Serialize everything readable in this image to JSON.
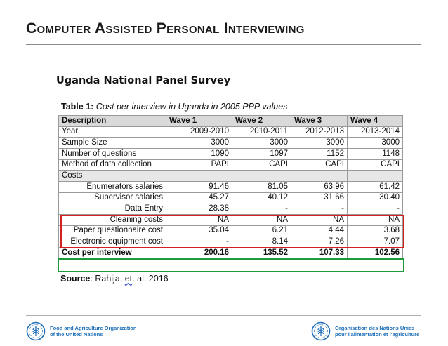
{
  "slide": {
    "title": "Computer Assisted Personal Interviewing",
    "subtitle": "Uganda National Panel Survey"
  },
  "table": {
    "caption_label": "Table 1:",
    "caption_text": "Cost per interview in Uganda in 2005 PPP values",
    "headers": [
      "Description",
      "Wave 1",
      "Wave 2",
      "Wave 3",
      "Wave 4"
    ],
    "rows": [
      {
        "label": "Year",
        "values": [
          "2009-2010",
          "2010-2011",
          "2012-2013",
          "2013-2014"
        ]
      },
      {
        "label": "Sample Size",
        "values": [
          "3000",
          "3000",
          "3000",
          "3000"
        ]
      },
      {
        "label": "Number of questions",
        "values": [
          "1090",
          "1097",
          "1152",
          "1148"
        ]
      },
      {
        "label": "Method of data collection",
        "values": [
          "PAPI",
          "CAPI",
          "CAPI",
          "CAPI"
        ]
      },
      {
        "label": "Costs",
        "values": [
          "",
          "",
          "",
          ""
        ]
      },
      {
        "label": "Enumerators salaries",
        "values": [
          "91.46",
          "81.05",
          "63.96",
          "61.42"
        ]
      },
      {
        "label": "Supervisor salaries",
        "values": [
          "45.27",
          "40.12",
          "31.66",
          "30.40"
        ]
      },
      {
        "label": "Data Entry",
        "values": [
          "28.38",
          "-",
          "-",
          "-"
        ]
      },
      {
        "label": "Cleaning costs",
        "values": [
          "NA",
          "NA",
          "NA",
          "NA"
        ]
      },
      {
        "label": "Paper questionnaire cost",
        "values": [
          "35.04",
          "6.21",
          "4.44",
          "3.68"
        ]
      },
      {
        "label": "Electronic equipment cost",
        "values": [
          "-",
          "8.14",
          "7.26",
          "7.07"
        ]
      },
      {
        "label": "Cost per interview",
        "values": [
          "200.16",
          "135.52",
          "107.33",
          "102.56"
        ]
      }
    ]
  },
  "source": {
    "label": "Source",
    "text_before": ": Rahija, ",
    "et": "et",
    "text_after": ". al. 2016"
  },
  "footer": {
    "left_line1": "Food and Agriculture Organization",
    "left_line2": "of the United Nations",
    "right_line1": "Organisation des Nations Unies",
    "right_line2": "pour l'alimentation et l'agriculture"
  },
  "colors": {
    "highlight_red": "#d42020",
    "highlight_green": "#1f9a3a",
    "fao_blue": "#1f6fb8"
  }
}
